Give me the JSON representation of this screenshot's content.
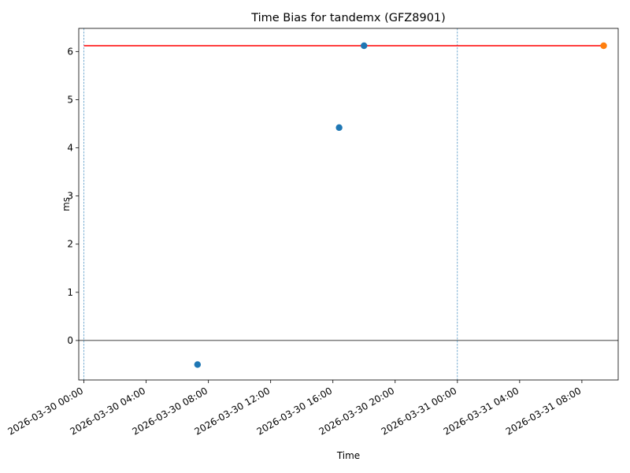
{
  "chart_data": {
    "type": "scatter",
    "title": "Time Bias for tandemx (GFZ8901)",
    "xlabel": "Time",
    "ylabel": "ms",
    "x_is_datetime": true,
    "xlim": [
      "2026-03-29T23:40:00",
      "2026-03-31T10:20:00"
    ],
    "ylim": [
      -0.82,
      6.48
    ],
    "x_ticks": [
      {
        "value": "2026-03-30T00:00:00",
        "label": "2026-03-30 00:00"
      },
      {
        "value": "2026-03-30T04:00:00",
        "label": "2026-03-30 04:00"
      },
      {
        "value": "2026-03-30T08:00:00",
        "label": "2026-03-30 08:00"
      },
      {
        "value": "2026-03-30T12:00:00",
        "label": "2026-03-30 12:00"
      },
      {
        "value": "2026-03-30T16:00:00",
        "label": "2026-03-30 16:00"
      },
      {
        "value": "2026-03-30T20:00:00",
        "label": "2026-03-30 20:00"
      },
      {
        "value": "2026-03-31T00:00:00",
        "label": "2026-03-31 00:00"
      },
      {
        "value": "2026-03-31T04:00:00",
        "label": "2026-03-31 04:00"
      },
      {
        "value": "2026-03-31T08:00:00",
        "label": "2026-03-31 08:00"
      }
    ],
    "y_ticks": [
      0,
      1,
      2,
      3,
      4,
      5,
      6
    ],
    "grid": false,
    "series": [
      {
        "kind": "scatter",
        "color": "#1f77b4",
        "points": [
          {
            "x": "2026-03-30T07:18:00",
            "y": -0.5
          },
          {
            "x": "2026-03-30T16:24:00",
            "y": 4.42
          },
          {
            "x": "2026-03-30T18:00:00",
            "y": 6.12
          }
        ]
      },
      {
        "kind": "scatter",
        "color": "#ff7f0e",
        "points": [
          {
            "x": "2026-03-31T09:24:00",
            "y": 6.12
          }
        ]
      },
      {
        "kind": "line",
        "color": "#ff0000",
        "points": [
          {
            "x": "2026-03-30T00:00:00",
            "y": 6.12
          },
          {
            "x": "2026-03-31T09:24:00",
            "y": 6.12
          }
        ]
      }
    ],
    "reference_lines": [
      {
        "orientation": "horizontal",
        "value": 0,
        "color": "#000000",
        "style": "solid"
      },
      {
        "orientation": "vertical",
        "value": "2026-03-30T00:00:00",
        "color": "#1f77b4",
        "style": "dashed"
      },
      {
        "orientation": "vertical",
        "value": "2026-03-31T00:00:00",
        "color": "#1f77b4",
        "style": "dashed"
      }
    ]
  }
}
